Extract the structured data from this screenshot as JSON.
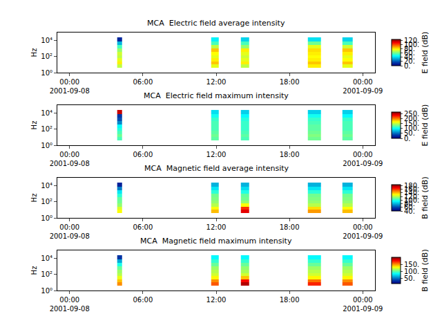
{
  "chart_data": [
    {
      "type": "heatmap",
      "title": "MCA  Electric field average intensity",
      "ylabel": "Hz",
      "log": "y",
      "x_edges": [
        "2001-09-08 03:54",
        "2001-09-08 04:18",
        "2001-09-08 11:36",
        "2001-09-08 12:12",
        "2001-09-08 14:00",
        "2001-09-08 14:42",
        "2001-09-08 19:30",
        "2001-09-08 20:36",
        "2001-09-08 22:18",
        "2001-09-08 23:12"
      ],
      "y_edges": [
        4,
        10,
        25,
        60,
        150,
        400,
        1000,
        3000,
        8000,
        25000
      ],
      "cells": [
        [
          70,
          null,
          75,
          null,
          70,
          null,
          80,
          null,
          75
        ],
        [
          80,
          null,
          85,
          null,
          80,
          null,
          85,
          null,
          85
        ],
        [
          75,
          null,
          80,
          null,
          75,
          null,
          80,
          null,
          78
        ],
        [
          70,
          null,
          75,
          null,
          72,
          null,
          78,
          null,
          75
        ],
        [
          72,
          null,
          78,
          null,
          75,
          null,
          80,
          null,
          80
        ],
        [
          65,
          null,
          85,
          null,
          80,
          null,
          82,
          null,
          85
        ],
        [
          55,
          null,
          70,
          null,
          65,
          null,
          75,
          null,
          72
        ],
        [
          35,
          null,
          55,
          null,
          55,
          null,
          60,
          null,
          55
        ],
        [
          10,
          null,
          45,
          null,
          40,
          null,
          42,
          null,
          40
        ]
      ],
      "xlim": [
        "2001-09-07 23:00",
        "2001-09-09 01:00"
      ],
      "xticks": [
        {
          "value": "2001-09-08 00:00",
          "label": "00:00\n2001-09-08"
        },
        {
          "value": "2001-09-08 06:00",
          "label": "06:00"
        },
        {
          "value": "2001-09-08 12:00",
          "label": "12:00"
        },
        {
          "value": "2001-09-08 18:00",
          "label": "18:00"
        },
        {
          "value": "2001-09-09 00:00",
          "label": "00:00\n2001-09-09"
        }
      ],
      "ylim": [
        1,
        100000
      ],
      "yticks": [
        {
          "value": 1,
          "label": "10⁰"
        },
        {
          "value": 100,
          "label": "10²"
        },
        {
          "value": 10000,
          "label": "10⁴"
        }
      ],
      "zlabel": "E field (dB)",
      "zlim": [
        0,
        125
      ],
      "zticks": [
        {
          "value": 0,
          "label": "0."
        },
        {
          "value": 20,
          "label": "20."
        },
        {
          "value": 40,
          "label": "40."
        },
        {
          "value": 60,
          "label": "60."
        },
        {
          "value": 80,
          "label": "80."
        },
        {
          "value": 100,
          "label": "100."
        },
        {
          "value": 120,
          "label": "120."
        }
      ]
    },
    {
      "type": "heatmap",
      "title": "MCA  Electric field maximum intensity",
      "ylabel": "Hz",
      "log": "y",
      "x_edges": [
        "2001-09-08 03:54",
        "2001-09-08 04:18",
        "2001-09-08 11:36",
        "2001-09-08 12:12",
        "2001-09-08 14:00",
        "2001-09-08 14:42",
        "2001-09-08 19:30",
        "2001-09-08 20:36",
        "2001-09-08 22:18",
        "2001-09-08 23:12"
      ],
      "y_edges": [
        4,
        10,
        25,
        60,
        150,
        400,
        1000,
        3000,
        8000,
        25000
      ],
      "cells": [
        [
          120,
          null,
          125,
          null,
          120,
          null,
          130,
          null,
          125
        ],
        [
          130,
          null,
          130,
          null,
          125,
          null,
          135,
          null,
          130
        ],
        [
          120,
          null,
          125,
          null,
          120,
          null,
          130,
          null,
          125
        ],
        [
          110,
          null,
          120,
          null,
          115,
          null,
          125,
          null,
          120
        ],
        [
          100,
          null,
          120,
          null,
          115,
          null,
          125,
          null,
          120
        ],
        [
          60,
          null,
          120,
          null,
          115,
          null,
          120,
          null,
          120
        ],
        [
          40,
          null,
          115,
          null,
          110,
          null,
          115,
          null,
          115
        ],
        [
          30,
          null,
          105,
          null,
          100,
          null,
          105,
          null,
          100
        ],
        [
          250,
          null,
          90,
          null,
          85,
          null,
          85,
          null,
          85
        ]
      ],
      "xlim": [
        "2001-09-07 23:00",
        "2001-09-09 01:00"
      ],
      "xticks": [
        {
          "value": "2001-09-08 00:00",
          "label": "00:00\n2001-09-08"
        },
        {
          "value": "2001-09-08 06:00",
          "label": "06:00"
        },
        {
          "value": "2001-09-08 12:00",
          "label": "12:00"
        },
        {
          "value": "2001-09-08 18:00",
          "label": "18:00"
        },
        {
          "value": "2001-09-09 00:00",
          "label": "00:00\n2001-09-09"
        }
      ],
      "ylim": [
        1,
        100000
      ],
      "yticks": [
        {
          "value": 1,
          "label": "10⁰"
        },
        {
          "value": 100,
          "label": "10²"
        },
        {
          "value": 10000,
          "label": "10⁴"
        }
      ],
      "zlabel": "E field (dB)",
      "zlim": [
        0,
        270
      ],
      "zticks": [
        {
          "value": 0,
          "label": "0."
        },
        {
          "value": 50,
          "label": "50."
        },
        {
          "value": 100,
          "label": "100."
        },
        {
          "value": 150,
          "label": "150."
        },
        {
          "value": 200,
          "label": "200."
        },
        {
          "value": 250,
          "label": "250."
        }
      ]
    },
    {
      "type": "heatmap",
      "title": "MCA  Magnetic field average intensity",
      "ylabel": "Hz",
      "log": "y",
      "x_edges": [
        "2001-09-08 03:54",
        "2001-09-08 04:18",
        "2001-09-08 11:36",
        "2001-09-08 12:12",
        "2001-09-08 14:00",
        "2001-09-08 14:42",
        "2001-09-08 19:30",
        "2001-09-08 20:36",
        "2001-09-08 22:18",
        "2001-09-08 23:12"
      ],
      "y_edges": [
        4,
        10,
        25,
        60,
        150,
        400,
        1000,
        3000,
        8000,
        25000
      ],
      "cells": [
        [
          130,
          null,
          140,
          null,
          170,
          null,
          145,
          null,
          140
        ],
        [
          125,
          null,
          130,
          null,
          160,
          null,
          135,
          null,
          130
        ],
        [
          115,
          null,
          120,
          null,
          130,
          null,
          120,
          null,
          120
        ],
        [
          110,
          null,
          115,
          null,
          115,
          null,
          115,
          null,
          115
        ],
        [
          108,
          null,
          112,
          null,
          110,
          null,
          112,
          null,
          112
        ],
        [
          100,
          null,
          110,
          null,
          108,
          null,
          110,
          null,
          110
        ],
        [
          90,
          null,
          100,
          null,
          98,
          null,
          100,
          null,
          100
        ],
        [
          70,
          null,
          90,
          null,
          88,
          null,
          90,
          null,
          90
        ],
        [
          50,
          null,
          80,
          null,
          80,
          null,
          80,
          null,
          80
        ]
      ],
      "xlim": [
        "2001-09-07 23:00",
        "2001-09-09 01:00"
      ],
      "xticks": [
        {
          "value": "2001-09-08 00:00",
          "label": "00:00\n2001-09-08"
        },
        {
          "value": "2001-09-08 06:00",
          "label": "06:00"
        },
        {
          "value": "2001-09-08 12:00",
          "label": "12:00"
        },
        {
          "value": "2001-09-08 18:00",
          "label": "18:00"
        },
        {
          "value": "2001-09-09 00:00",
          "label": "00:00\n2001-09-09"
        }
      ],
      "ylim": [
        1,
        100000
      ],
      "yticks": [
        {
          "value": 1,
          "label": "10⁰"
        },
        {
          "value": 100,
          "label": "10²"
        },
        {
          "value": 10000,
          "label": "10⁴"
        }
      ],
      "zlabel": "B field (dB)",
      "zlim": [
        40,
        185
      ],
      "zticks": [
        {
          "value": 40,
          "label": "40."
        },
        {
          "value": 60,
          "label": "60."
        },
        {
          "value": 80,
          "label": "80."
        },
        {
          "value": 100,
          "label": "100."
        },
        {
          "value": 120,
          "label": "120."
        },
        {
          "value": 140,
          "label": "140."
        },
        {
          "value": 160,
          "label": "160."
        },
        {
          "value": 180,
          "label": "180."
        }
      ]
    },
    {
      "type": "heatmap",
      "title": "MCA  Magnetic field maximum intensity",
      "ylabel": "Hz",
      "log": "y",
      "x_edges": [
        "2001-09-08 03:54",
        "2001-09-08 04:18",
        "2001-09-08 11:36",
        "2001-09-08 12:12",
        "2001-09-08 14:00",
        "2001-09-08 14:42",
        "2001-09-08 19:30",
        "2001-09-08 20:36",
        "2001-09-08 22:18",
        "2001-09-08 23:12"
      ],
      "y_edges": [
        4,
        10,
        25,
        60,
        150,
        400,
        1000,
        3000,
        8000,
        25000
      ],
      "cells": [
        [
          150,
          null,
          160,
          null,
          190,
          null,
          170,
          null,
          160
        ],
        [
          140,
          null,
          150,
          null,
          175,
          null,
          155,
          null,
          150
        ],
        [
          125,
          null,
          130,
          null,
          140,
          null,
          130,
          null,
          130
        ],
        [
          115,
          null,
          120,
          null,
          120,
          null,
          120,
          null,
          120
        ],
        [
          110,
          null,
          115,
          null,
          112,
          null,
          115,
          null,
          115
        ],
        [
          100,
          null,
          110,
          null,
          108,
          null,
          110,
          null,
          110
        ],
        [
          85,
          null,
          100,
          null,
          100,
          null,
          100,
          null,
          100
        ],
        [
          60,
          null,
          90,
          null,
          90,
          null,
          90,
          null,
          90
        ],
        [
          30,
          null,
          80,
          null,
          80,
          null,
          80,
          null,
          80
        ]
      ],
      "xlim": [
        "2001-09-07 23:00",
        "2001-09-09 01:00"
      ],
      "xticks": [
        {
          "value": "2001-09-08 00:00",
          "label": "00:00\n2001-09-08"
        },
        {
          "value": "2001-09-08 06:00",
          "label": "06:00"
        },
        {
          "value": "2001-09-08 12:00",
          "label": "12:00"
        },
        {
          "value": "2001-09-08 18:00",
          "label": "18:00"
        },
        {
          "value": "2001-09-09 00:00",
          "label": "00:00\n2001-09-09"
        }
      ],
      "ylim": [
        1,
        100000
      ],
      "yticks": [
        {
          "value": 1,
          "label": "10⁰"
        },
        {
          "value": 100,
          "label": "10²"
        },
        {
          "value": 10000,
          "label": "10⁴"
        }
      ],
      "zlabel": "B field (dB)",
      "zlim": [
        10,
        200
      ],
      "zticks": [
        {
          "value": 50,
          "label": "50."
        },
        {
          "value": 100,
          "label": "100."
        },
        {
          "value": 150,
          "label": "150."
        }
      ]
    }
  ]
}
